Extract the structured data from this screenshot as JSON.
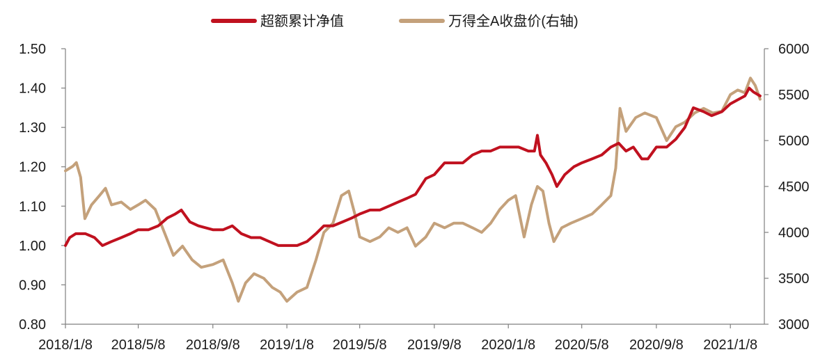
{
  "chart_data": {
    "type": "line",
    "title": "",
    "xlabel": "",
    "ylabel": "",
    "y2label": "",
    "x_ticks": [
      "2018/1/8",
      "2018/5/8",
      "2018/9/8",
      "2019/1/8",
      "2019/5/8",
      "2019/9/8",
      "2020/1/8",
      "2020/5/8",
      "2020/9/8",
      "2021/1/8"
    ],
    "ylim": [
      0.8,
      1.5
    ],
    "y_ticks": [
      "0.80",
      "0.90",
      "1.00",
      "1.10",
      "1.20",
      "1.30",
      "1.40",
      "1.50"
    ],
    "y2lim": [
      3000,
      6000
    ],
    "y2_ticks": [
      "3000",
      "3500",
      "4000",
      "4500",
      "5000",
      "5500",
      "6000"
    ],
    "legend_position": "top-center",
    "grid": false,
    "series": [
      {
        "name": "超额累计净值",
        "axis": "left",
        "color": "#c0111f",
        "points": [
          [
            "2018-01-08",
            1.0
          ],
          [
            "2018-01-15",
            1.02
          ],
          [
            "2018-01-25",
            1.03
          ],
          [
            "2018-02-10",
            1.03
          ],
          [
            "2018-02-25",
            1.02
          ],
          [
            "2018-03-10",
            1.0
          ],
          [
            "2018-03-25",
            1.01
          ],
          [
            "2018-04-10",
            1.02
          ],
          [
            "2018-04-25",
            1.03
          ],
          [
            "2018-05-08",
            1.04
          ],
          [
            "2018-05-25",
            1.04
          ],
          [
            "2018-06-10",
            1.05
          ],
          [
            "2018-06-25",
            1.07
          ],
          [
            "2018-07-08",
            1.08
          ],
          [
            "2018-07-18",
            1.09
          ],
          [
            "2018-08-01",
            1.06
          ],
          [
            "2018-08-15",
            1.05
          ],
          [
            "2018-09-08",
            1.04
          ],
          [
            "2018-09-25",
            1.04
          ],
          [
            "2018-10-10",
            1.05
          ],
          [
            "2018-10-25",
            1.03
          ],
          [
            "2018-11-10",
            1.02
          ],
          [
            "2018-11-25",
            1.02
          ],
          [
            "2018-12-10",
            1.01
          ],
          [
            "2018-12-25",
            1.0
          ],
          [
            "2019-01-08",
            1.0
          ],
          [
            "2019-01-25",
            1.0
          ],
          [
            "2019-02-10",
            1.01
          ],
          [
            "2019-02-25",
            1.03
          ],
          [
            "2019-03-10",
            1.05
          ],
          [
            "2019-03-25",
            1.05
          ],
          [
            "2019-04-10",
            1.06
          ],
          [
            "2019-04-25",
            1.07
          ],
          [
            "2019-05-08",
            1.08
          ],
          [
            "2019-05-25",
            1.09
          ],
          [
            "2019-06-10",
            1.09
          ],
          [
            "2019-06-25",
            1.1
          ],
          [
            "2019-07-10",
            1.11
          ],
          [
            "2019-07-25",
            1.12
          ],
          [
            "2019-08-08",
            1.13
          ],
          [
            "2019-08-25",
            1.17
          ],
          [
            "2019-09-08",
            1.18
          ],
          [
            "2019-09-25",
            1.21
          ],
          [
            "2019-10-10",
            1.21
          ],
          [
            "2019-10-25",
            1.21
          ],
          [
            "2019-11-10",
            1.23
          ],
          [
            "2019-11-25",
            1.24
          ],
          [
            "2019-12-10",
            1.24
          ],
          [
            "2019-12-25",
            1.25
          ],
          [
            "2020-01-08",
            1.25
          ],
          [
            "2020-01-25",
            1.25
          ],
          [
            "2020-02-10",
            1.24
          ],
          [
            "2020-02-20",
            1.24
          ],
          [
            "2020-02-25",
            1.28
          ],
          [
            "2020-03-01",
            1.23
          ],
          [
            "2020-03-10",
            1.21
          ],
          [
            "2020-03-20",
            1.18
          ],
          [
            "2020-03-28",
            1.15
          ],
          [
            "2020-04-10",
            1.18
          ],
          [
            "2020-04-25",
            1.2
          ],
          [
            "2020-05-08",
            1.21
          ],
          [
            "2020-05-25",
            1.22
          ],
          [
            "2020-06-10",
            1.23
          ],
          [
            "2020-06-25",
            1.25
          ],
          [
            "2020-07-08",
            1.26
          ],
          [
            "2020-07-20",
            1.24
          ],
          [
            "2020-08-01",
            1.25
          ],
          [
            "2020-08-15",
            1.22
          ],
          [
            "2020-08-25",
            1.22
          ],
          [
            "2020-09-08",
            1.25
          ],
          [
            "2020-09-25",
            1.25
          ],
          [
            "2020-10-10",
            1.27
          ],
          [
            "2020-10-25",
            1.3
          ],
          [
            "2020-11-08",
            1.35
          ],
          [
            "2020-11-25",
            1.34
          ],
          [
            "2020-12-08",
            1.33
          ],
          [
            "2020-12-25",
            1.34
          ],
          [
            "2021-01-08",
            1.36
          ],
          [
            "2021-01-20",
            1.37
          ],
          [
            "2021-02-01",
            1.38
          ],
          [
            "2021-02-08",
            1.4
          ],
          [
            "2021-02-15",
            1.39
          ],
          [
            "2021-02-26",
            1.38
          ]
        ]
      },
      {
        "name": "万得全A收盘价(右轴)",
        "axis": "right",
        "color": "#c4a17b",
        "points": [
          [
            "2018-01-08",
            4670
          ],
          [
            "2018-01-20",
            4720
          ],
          [
            "2018-01-26",
            4760
          ],
          [
            "2018-02-02",
            4600
          ],
          [
            "2018-02-09",
            4150
          ],
          [
            "2018-02-20",
            4300
          ],
          [
            "2018-03-05",
            4400
          ],
          [
            "2018-03-15",
            4480
          ],
          [
            "2018-03-25",
            4300
          ],
          [
            "2018-04-10",
            4330
          ],
          [
            "2018-04-25",
            4250
          ],
          [
            "2018-05-08",
            4300
          ],
          [
            "2018-05-20",
            4350
          ],
          [
            "2018-06-05",
            4250
          ],
          [
            "2018-06-20",
            4000
          ],
          [
            "2018-07-05",
            3750
          ],
          [
            "2018-07-20",
            3850
          ],
          [
            "2018-08-05",
            3700
          ],
          [
            "2018-08-20",
            3620
          ],
          [
            "2018-09-08",
            3650
          ],
          [
            "2018-09-25",
            3700
          ],
          [
            "2018-10-10",
            3450
          ],
          [
            "2018-10-20",
            3250
          ],
          [
            "2018-11-01",
            3450
          ],
          [
            "2018-11-15",
            3550
          ],
          [
            "2018-12-01",
            3500
          ],
          [
            "2018-12-15",
            3400
          ],
          [
            "2018-12-28",
            3350
          ],
          [
            "2019-01-08",
            3250
          ],
          [
            "2019-01-25",
            3350
          ],
          [
            "2019-02-10",
            3400
          ],
          [
            "2019-02-25",
            3700
          ],
          [
            "2019-03-10",
            4000
          ],
          [
            "2019-03-25",
            4100
          ],
          [
            "2019-04-08",
            4400
          ],
          [
            "2019-04-20",
            4450
          ],
          [
            "2019-04-30",
            4200
          ],
          [
            "2019-05-08",
            3950
          ],
          [
            "2019-05-25",
            3900
          ],
          [
            "2019-06-10",
            3950
          ],
          [
            "2019-06-25",
            4050
          ],
          [
            "2019-07-10",
            4000
          ],
          [
            "2019-07-25",
            4050
          ],
          [
            "2019-08-08",
            3850
          ],
          [
            "2019-08-25",
            3950
          ],
          [
            "2019-09-08",
            4100
          ],
          [
            "2019-09-25",
            4050
          ],
          [
            "2019-10-10",
            4100
          ],
          [
            "2019-10-25",
            4100
          ],
          [
            "2019-11-10",
            4050
          ],
          [
            "2019-11-25",
            4000
          ],
          [
            "2019-12-10",
            4100
          ],
          [
            "2019-12-25",
            4250
          ],
          [
            "2020-01-08",
            4350
          ],
          [
            "2020-01-20",
            4400
          ],
          [
            "2020-02-03",
            3950
          ],
          [
            "2020-02-15",
            4300
          ],
          [
            "2020-02-25",
            4500
          ],
          [
            "2020-03-05",
            4450
          ],
          [
            "2020-03-15",
            4100
          ],
          [
            "2020-03-23",
            3900
          ],
          [
            "2020-04-05",
            4050
          ],
          [
            "2020-04-20",
            4100
          ],
          [
            "2020-05-08",
            4150
          ],
          [
            "2020-05-25",
            4200
          ],
          [
            "2020-06-10",
            4300
          ],
          [
            "2020-06-25",
            4400
          ],
          [
            "2020-07-03",
            4700
          ],
          [
            "2020-07-10",
            5350
          ],
          [
            "2020-07-20",
            5100
          ],
          [
            "2020-08-05",
            5250
          ],
          [
            "2020-08-20",
            5300
          ],
          [
            "2020-09-08",
            5250
          ],
          [
            "2020-09-25",
            5000
          ],
          [
            "2020-10-10",
            5150
          ],
          [
            "2020-10-25",
            5200
          ],
          [
            "2020-11-10",
            5300
          ],
          [
            "2020-11-25",
            5350
          ],
          [
            "2020-12-10",
            5300
          ],
          [
            "2020-12-25",
            5320
          ],
          [
            "2021-01-08",
            5500
          ],
          [
            "2021-01-20",
            5550
          ],
          [
            "2021-02-01",
            5520
          ],
          [
            "2021-02-10",
            5680
          ],
          [
            "2021-02-18",
            5600
          ],
          [
            "2021-02-26",
            5450
          ]
        ]
      }
    ]
  }
}
